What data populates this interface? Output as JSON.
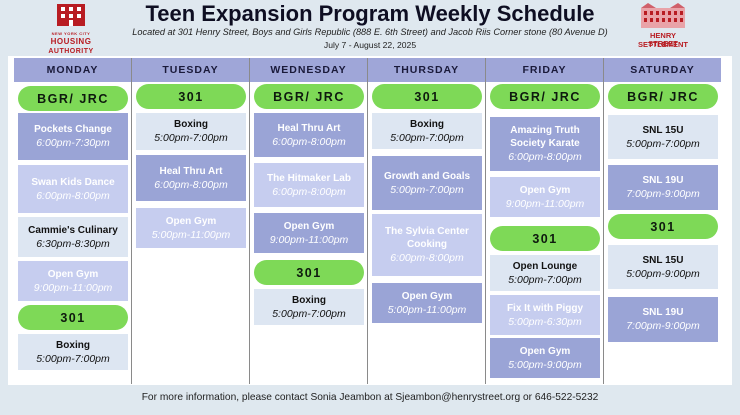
{
  "header": {
    "title": "Teen Expansion Program Weekly Schedule",
    "subtitle": "Located at 301 Henry Street, Boys and Girls Republic (888 E. 6th Street) and Jacob Riis Corner stone (80 Avenue D)",
    "dates": "July 7 - August 22, 2025"
  },
  "logos": {
    "nycha": {
      "line1": "NEW YORK CITY",
      "line2": "HOUSING",
      "line3": "AUTHORITY",
      "icon": "building-icon"
    },
    "henry_street": {
      "line1": "HENRY STREET",
      "line2": "SETTLEMENT",
      "icon": "building-icon"
    }
  },
  "colors": {
    "day_header": "#9fa6d8",
    "location_pill": "#7ed957",
    "lavender_box": "#9aa4d6",
    "light_box": "#dde6f2",
    "pale_box": "#c6cdef",
    "background": "#dfe8ef",
    "brand_red": "#b81c22"
  },
  "days": [
    {
      "name": "MONDAY",
      "items": [
        {
          "kind": "pill",
          "label": "BGR/ JRC"
        },
        {
          "kind": "box",
          "style": "lavender",
          "name": "Pockets Change",
          "time": "6:00pm-7:30pm"
        },
        {
          "kind": "box",
          "style": "pale",
          "name": "Swan Kids Dance",
          "time": "6:00pm-8:00pm"
        },
        {
          "kind": "box",
          "style": "light",
          "name": "Cammie's Culinary",
          "time": "6:30pm-8:30pm"
        },
        {
          "kind": "box",
          "style": "pale",
          "name": "Open Gym",
          "time": "9:00pm-11:00pm"
        },
        {
          "kind": "pill",
          "label": "301"
        },
        {
          "kind": "box",
          "style": "light",
          "name": "Boxing",
          "time": "5:00pm-7:00pm"
        }
      ]
    },
    {
      "name": "TUESDAY",
      "items": [
        {
          "kind": "pill",
          "label": "301"
        },
        {
          "kind": "box",
          "style": "light",
          "name": "Boxing",
          "time": "5:00pm-7:00pm"
        },
        {
          "kind": "box",
          "style": "lavender",
          "name": "Heal Thru Art",
          "time": "6:00pm-8:00pm"
        },
        {
          "kind": "box",
          "style": "pale",
          "name": "Open Gym",
          "time": "5:00pm-11:00pm"
        }
      ]
    },
    {
      "name": "WEDNESDAY",
      "items": [
        {
          "kind": "pill",
          "label": "BGR/ JRC"
        },
        {
          "kind": "box",
          "style": "lavender",
          "name": "Heal Thru Art",
          "time": "6:00pm-8:00pm"
        },
        {
          "kind": "box",
          "style": "pale",
          "name": "The Hitmaker Lab",
          "time": "6:00pm-8:00pm"
        },
        {
          "kind": "box",
          "style": "lavender",
          "name": "Open Gym",
          "time": "9:00pm-11:00pm"
        },
        {
          "kind": "pill",
          "label": "301"
        },
        {
          "kind": "box",
          "style": "light",
          "name": "Boxing",
          "time": "5:00pm-7:00pm"
        }
      ]
    },
    {
      "name": "THURSDAY",
      "items": [
        {
          "kind": "pill",
          "label": "301"
        },
        {
          "kind": "box",
          "style": "light",
          "name": "Boxing",
          "time": "5:00pm-7:00pm"
        },
        {
          "kind": "box",
          "style": "lavender",
          "name": "Growth and Goals",
          "time": "5:00pm-7:00pm"
        },
        {
          "kind": "box",
          "style": "pale",
          "name": "The Sylvia Center Cooking",
          "time": "6:00pm-8:00pm"
        },
        {
          "kind": "box",
          "style": "lavender",
          "name": "Open Gym",
          "time": "5:00pm-11:00pm"
        }
      ]
    },
    {
      "name": "FRIDAY",
      "items": [
        {
          "kind": "pill",
          "label": "BGR/ JRC"
        },
        {
          "kind": "box",
          "style": "lavender",
          "name": "Amazing Truth Society Karate",
          "time": "6:00pm-8:00pm"
        },
        {
          "kind": "box",
          "style": "pale",
          "name": "Open Gym",
          "time": "9:00pm-11:00pm"
        },
        {
          "kind": "pill",
          "label": "301"
        },
        {
          "kind": "box",
          "style": "light",
          "name": "Open Lounge",
          "time": "5:00pm-7:00pm"
        },
        {
          "kind": "box",
          "style": "pale",
          "name": "Fix It with Piggy",
          "time": "5:00pm-6:30pm"
        },
        {
          "kind": "box",
          "style": "lavender",
          "name": "Open Gym",
          "time": "5:00pm-9:00pm"
        }
      ]
    },
    {
      "name": "SATURDAY",
      "items": [
        {
          "kind": "pill",
          "label": "BGR/ JRC"
        },
        {
          "kind": "box",
          "style": "light",
          "name": "SNL 15U",
          "time": "5:00pm-7:00pm"
        },
        {
          "kind": "box",
          "style": "lavender",
          "name": "SNL 19U",
          "time": "7:00pm-9:00pm"
        },
        {
          "kind": "pill",
          "label": "301"
        },
        {
          "kind": "box",
          "style": "light",
          "name": "SNL 15U",
          "time": "5:00pm-9:00pm"
        },
        {
          "kind": "box",
          "style": "lavender",
          "name": "SNL 19U",
          "time": "7:00pm-9:00pm"
        }
      ]
    }
  ],
  "footer": "For more information, please contact Sonia Jeambon at Sjeambon@henrystreet.org or 646-522-5232"
}
